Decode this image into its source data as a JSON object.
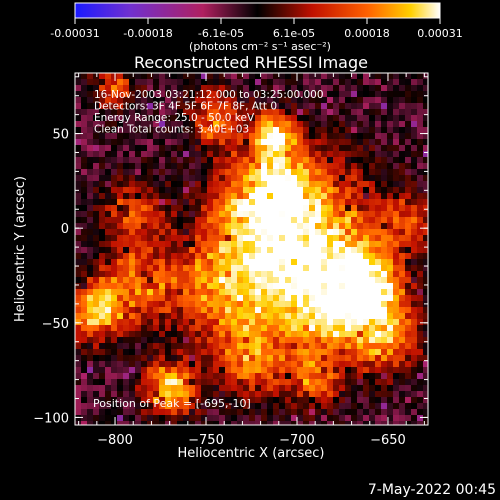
{
  "colorbar": {
    "ticks": [
      "-0.00031",
      "-0.00018",
      "-6.1e-05",
      "6.1e-05",
      "0.00018",
      "0.00031"
    ],
    "unit_line": "(photons cm⁻² s⁻¹ asec⁻²)",
    "range": [
      -0.00031,
      0.00031
    ],
    "colormap": [
      "#1a1aff",
      "#7030d0",
      "#b02060",
      "#000000",
      "#c01000",
      "#ff6000",
      "#ffd000",
      "#ffffff"
    ]
  },
  "footer": {
    "timestamp": "7-May-2022 00:45"
  },
  "chart_data": {
    "type": "heatmap",
    "title": "Reconstructed RHESSI Image",
    "xlabel": "Heliocentric X (arcsec)",
    "ylabel": "Heliocentric Y (arcsec)",
    "xlim": [
      -822,
      -628
    ],
    "ylim": [
      -104,
      82
    ],
    "xticks": [
      -800,
      -750,
      -700,
      -650
    ],
    "yticks": [
      -100,
      -50,
      0,
      50
    ],
    "xtick_labels": [
      "−800",
      "−750",
      "−700",
      "−650"
    ],
    "ytick_labels": [
      "−100",
      "−50",
      "0",
      "50"
    ],
    "annotations": [
      "16-Nov-2003 03:21:12.000 to 03:25:00.000",
      "Detectors: 3F 4F 5F 6F 7F 8F, Att 0",
      "Energy Range: 25.0 - 50.0 keV",
      "Clean     Total counts: 3.40E+03"
    ],
    "peak_label": "Position of Peak = [-695,-10]",
    "peak": [
      -695,
      -10
    ],
    "intensity_range": [
      -0.00031,
      0.00031
    ]
  }
}
